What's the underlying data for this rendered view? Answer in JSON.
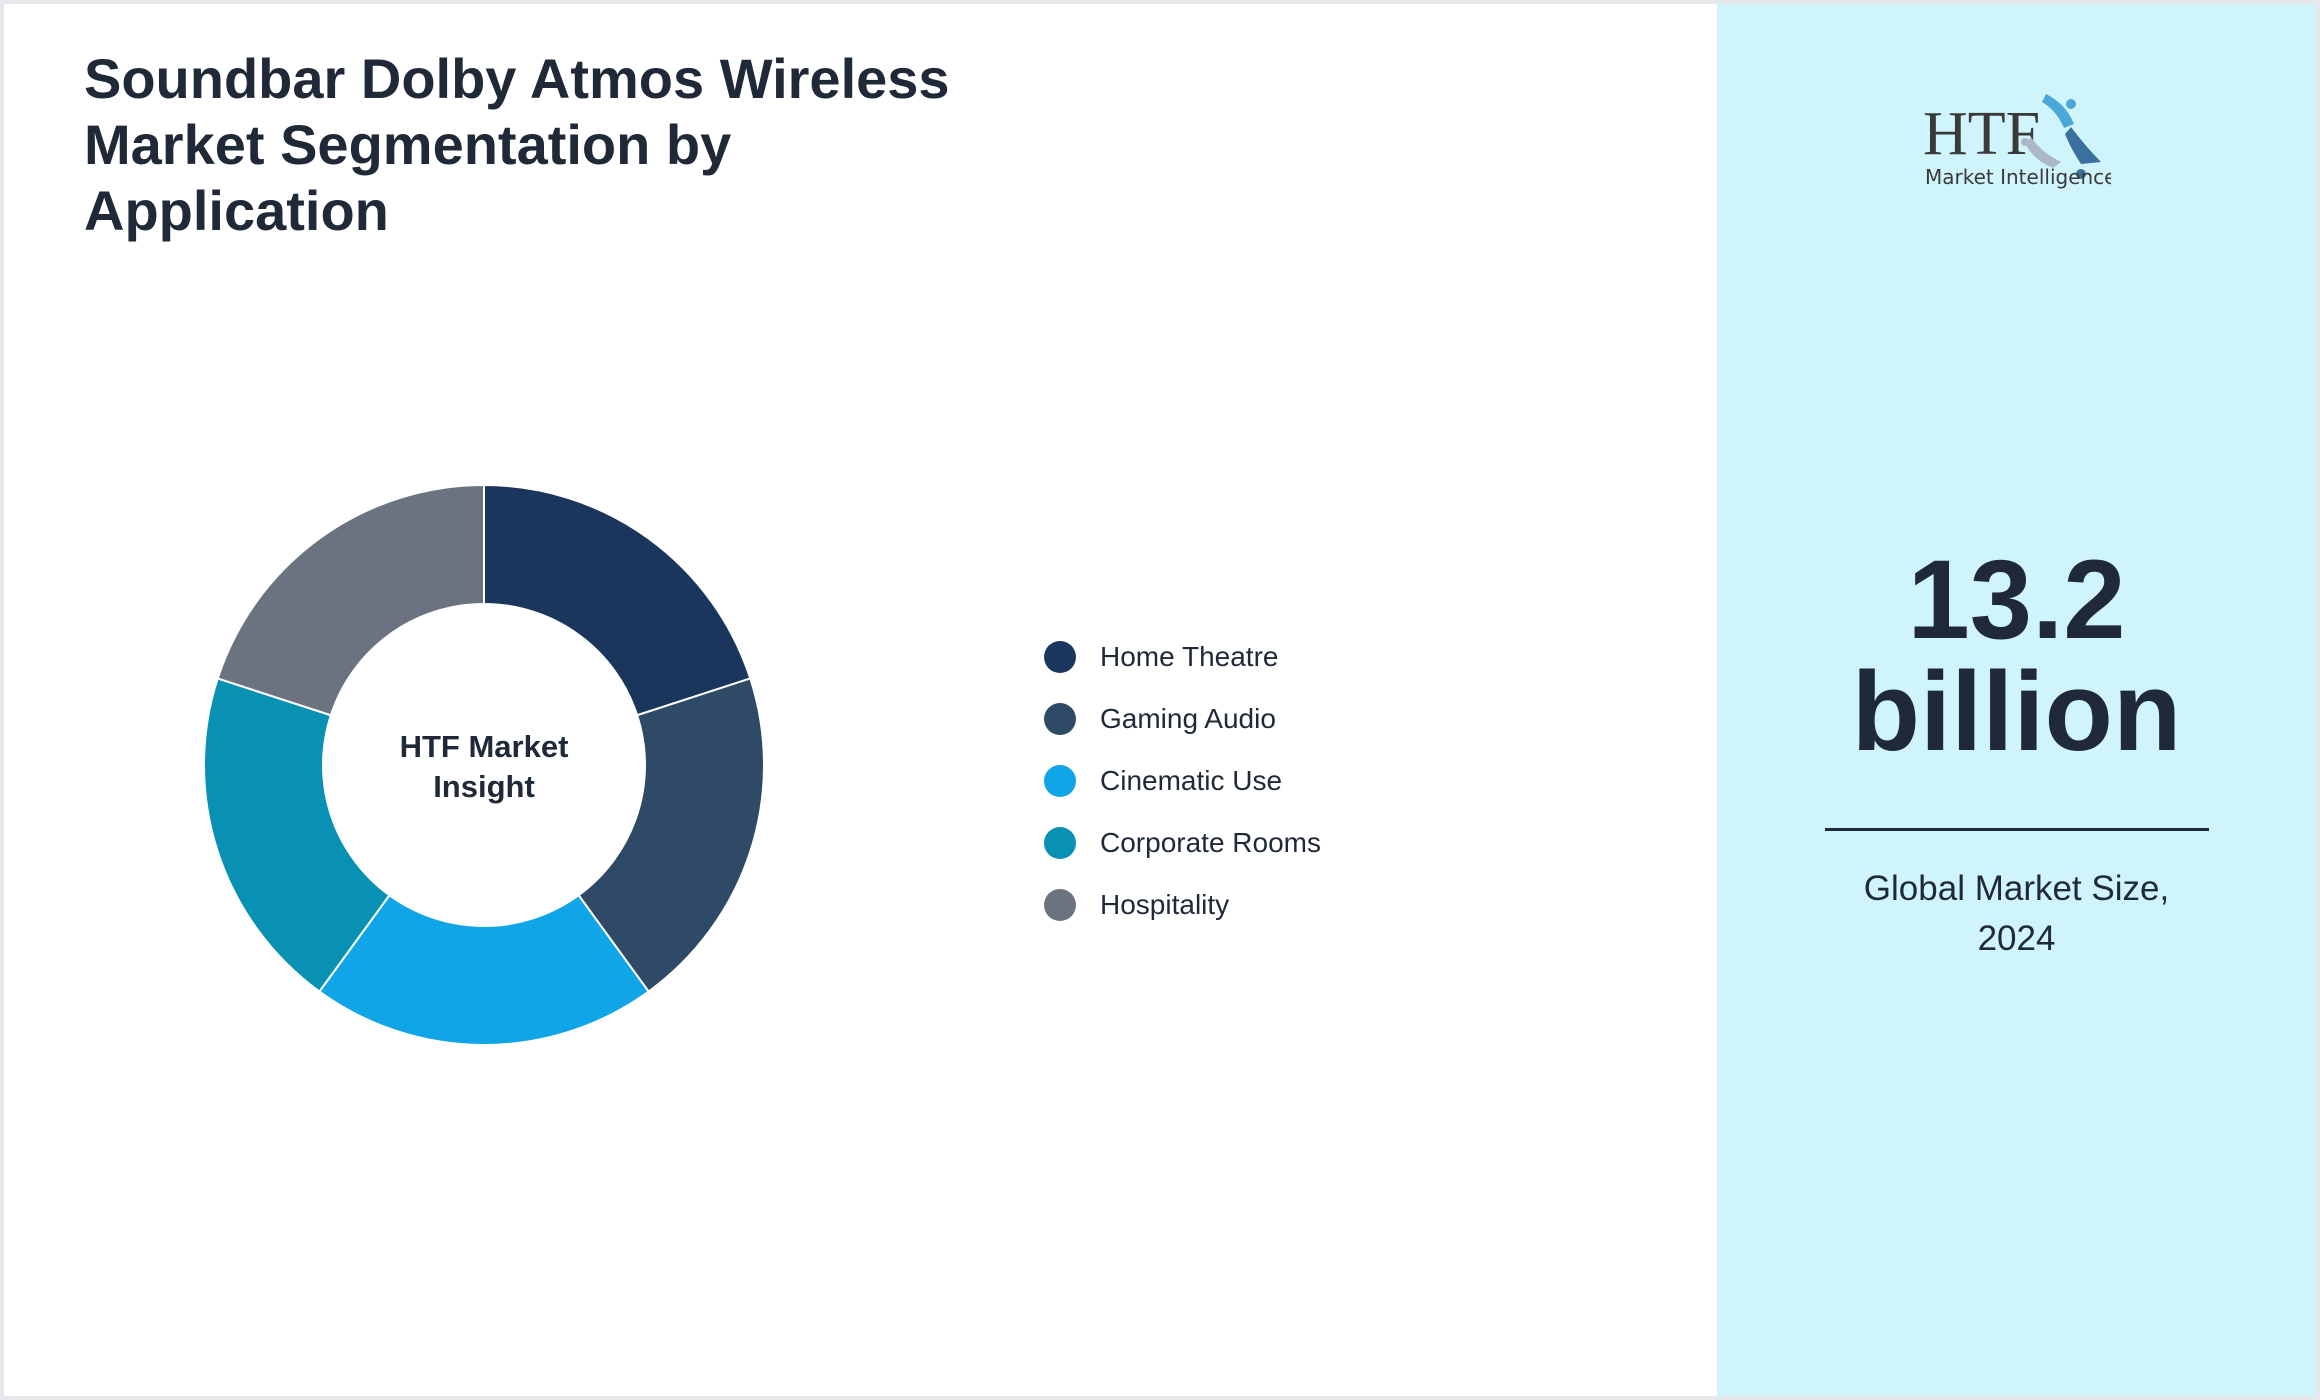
{
  "chart_data": {
    "type": "pie",
    "title": "Soundbar Dolby Atmos Wireless Market Segmentation by Application",
    "center_label": [
      "HTF Market",
      "Insight"
    ],
    "categories": [
      "Home Theatre",
      "Gaming Audio",
      "Cinematic Use",
      "Corporate Rooms",
      "Hospitality"
    ],
    "values": [
      20,
      20,
      20,
      20,
      20
    ],
    "colors": [
      "#1b365d",
      "#2e4a66",
      "#10a5e6",
      "#0891b2",
      "#6b7280"
    ],
    "legend_position": "right"
  },
  "logo": {
    "text": "HTF",
    "subtext": "Market Intelligence"
  },
  "market": {
    "value_line1": "13.2",
    "value_line2": "billion",
    "caption_line1": "Global Market Size,",
    "caption_line2": "2024"
  }
}
